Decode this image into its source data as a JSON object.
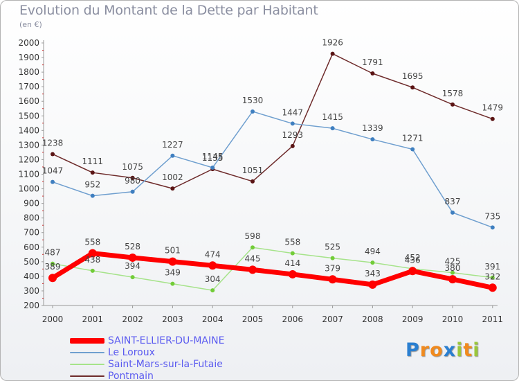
{
  "chart_data": {
    "type": "line",
    "title": "Evolution du Montant de la Dette par Habitant",
    "subtitle": "(en €)",
    "categories": [
      "2000",
      "2001",
      "2002",
      "2003",
      "2004",
      "2005",
      "2006",
      "2007",
      "2008",
      "2009",
      "2010",
      "2011"
    ],
    "ylim": [
      200,
      2000
    ],
    "yticks": [
      "2000",
      "1900",
      "1800",
      "1700",
      "1600",
      "1500",
      "1400",
      "1300",
      "1200",
      "1100",
      "1000",
      "900",
      "800",
      "700",
      "600",
      "500",
      "400",
      "300",
      "200"
    ],
    "grid": false,
    "legend_position": "bottom-left",
    "series": [
      {
        "name": "Pontmain",
        "color": "#6e2b2b",
        "point_color": "#5a1414",
        "width": 1.5,
        "radius": 3,
        "values": [
          1238,
          1111,
          1075,
          1002,
          1135,
          1051,
          1293,
          1926,
          1791,
          1695,
          1578,
          1479
        ]
      },
      {
        "name": "Saint-Mars-sur-la-Futaie",
        "color": "#a6e38a",
        "point_color": "#72cc38",
        "width": 1.5,
        "radius": 3,
        "values": [
          487,
          438,
          394,
          349,
          304,
          598,
          558,
          525,
          494,
          452,
          425,
          391
        ]
      },
      {
        "name": "Le Loroux",
        "color": "#6f9fcf",
        "point_color": "#3f7fc0",
        "width": 1.5,
        "radius": 3,
        "values": [
          1047,
          952,
          980,
          1227,
          1145,
          1530,
          1447,
          1415,
          1339,
          1271,
          837,
          735
        ]
      },
      {
        "name": "SAINT-ELLIER-DU-MAINE",
        "color": "#ff0000",
        "point_color": "#ff0000",
        "width": 7,
        "radius": 6,
        "values": [
          389,
          558,
          528,
          501,
          474,
          445,
          414,
          379,
          343,
          436,
          380,
          322
        ]
      }
    ]
  },
  "legend": [
    {
      "label": "SAINT-ELLIER-DU-MAINE",
      "color": "#ff0000"
    },
    {
      "label": "Le Loroux",
      "color": "#6f9fcf"
    },
    {
      "label": "Saint-Mars-sur-la-Futaie",
      "color": "#a6e38a"
    },
    {
      "label": "Pontmain",
      "color": "#6e2b2b"
    }
  ],
  "logo": {
    "text": "Proxiti",
    "letters": [
      {
        "ch": "P",
        "color": "#2a7fd0"
      },
      {
        "ch": "r",
        "color": "#f08a1e"
      },
      {
        "ch": "o",
        "color": "#f08a1e"
      },
      {
        "ch": "x",
        "color": "#2a7fd0"
      },
      {
        "ch": "i",
        "color": "#9ac73a"
      },
      {
        "ch": "t",
        "color": "#f08a1e"
      },
      {
        "ch": "i",
        "color": "#9ac73a"
      }
    ]
  }
}
